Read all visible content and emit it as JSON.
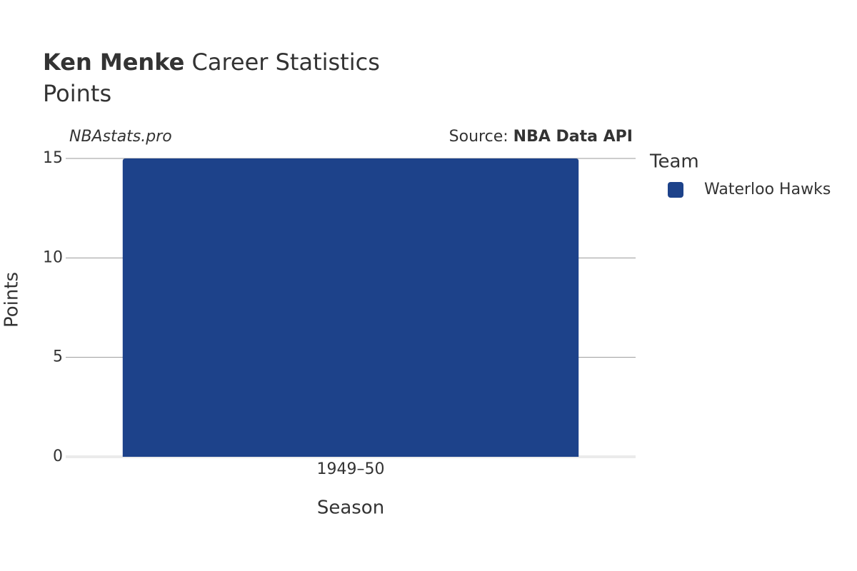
{
  "chart_data": {
    "type": "bar",
    "title_name": "Ken Menke",
    "title_rest": "Career Statistics",
    "subtitle": "Points",
    "watermark": "NBAstats.pro",
    "source_label": "Source:",
    "source_name": "NBA Data API",
    "x_label": "Season",
    "y_label": "Points",
    "legend_title": "Team",
    "categories": [
      "1949–50"
    ],
    "series": [
      {
        "name": "Waterloo Hawks",
        "color": "#1d428a",
        "values": [
          15
        ]
      }
    ],
    "ylim": [
      0,
      15
    ],
    "yticks": [
      0,
      5,
      10,
      15
    ],
    "grid": true
  }
}
